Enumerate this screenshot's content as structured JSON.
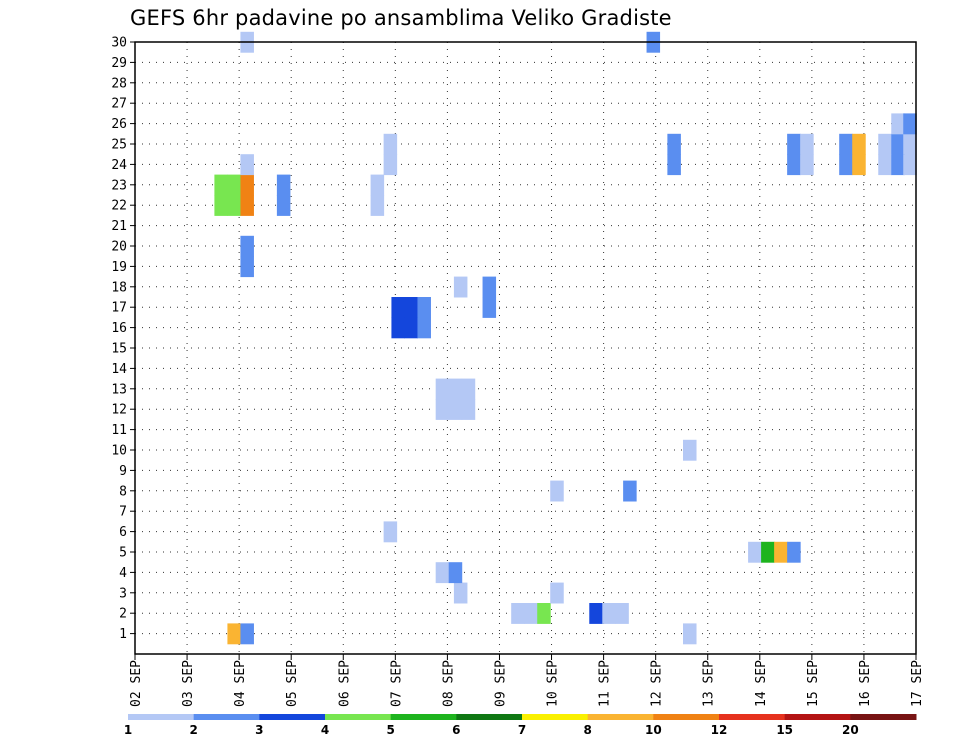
{
  "title": "GEFS 6hr padavine po ansamblima Veliko Gradiste",
  "chart_data": {
    "type": "heatmap",
    "title": "GEFS 6hr padavine po ansamblima Veliko Gradiste",
    "xlabel": "",
    "ylabel": "",
    "x_tick_labels": [
      "02 SEP",
      "03 SEP",
      "04 SEP",
      "05 SEP",
      "06 SEP",
      "07 SEP",
      "08 SEP",
      "09 SEP",
      "10 SEP",
      "11 SEP",
      "12 SEP",
      "13 SEP",
      "14 SEP",
      "15 SEP",
      "16 SEP",
      "17 SEP"
    ],
    "xlim_days": [
      2.0,
      17.0
    ],
    "y_ticks": [
      1,
      2,
      3,
      4,
      5,
      6,
      7,
      8,
      9,
      10,
      11,
      12,
      13,
      14,
      15,
      16,
      17,
      18,
      19,
      20,
      21,
      22,
      23,
      24,
      25,
      26,
      27,
      28,
      29,
      30
    ],
    "ylim": [
      0,
      30
    ],
    "grid": true,
    "legend_placement": "bottom",
    "color_scale": {
      "levels": [
        "1",
        "2",
        "3",
        "4",
        "5",
        "6",
        "7",
        "8",
        "10",
        "12",
        "15",
        "20"
      ],
      "colors": [
        "#b4c8f5",
        "#5a8ef0",
        "#1446dc",
        "#78e650",
        "#1eb41e",
        "#0f7814",
        "#faf000",
        "#fab432",
        "#f08214",
        "#e6321e",
        "#b41414",
        "#781414"
      ]
    },
    "cells": [
      {
        "x": 3.9,
        "y": 1,
        "c": 7
      },
      {
        "x": 4.15,
        "y": 1,
        "c": 1
      },
      {
        "x": 12.65,
        "y": 1,
        "c": 0
      },
      {
        "x": 9.35,
        "y": 2,
        "c": 0
      },
      {
        "x": 9.6,
        "y": 2,
        "c": 0
      },
      {
        "x": 9.85,
        "y": 2,
        "c": 3
      },
      {
        "x": 10.85,
        "y": 2,
        "c": 2
      },
      {
        "x": 11.1,
        "y": 2,
        "c": 0
      },
      {
        "x": 11.35,
        "y": 2,
        "c": 0
      },
      {
        "x": 8.25,
        "y": 3,
        "c": 0
      },
      {
        "x": 10.1,
        "y": 3,
        "c": 0
      },
      {
        "x": 7.9,
        "y": 4,
        "c": 0
      },
      {
        "x": 8.15,
        "y": 4,
        "c": 1
      },
      {
        "x": 13.9,
        "y": 5,
        "c": 0
      },
      {
        "x": 14.15,
        "y": 5,
        "c": 4
      },
      {
        "x": 14.4,
        "y": 5,
        "c": 7
      },
      {
        "x": 14.65,
        "y": 5,
        "c": 1
      },
      {
        "x": 6.9,
        "y": 6,
        "c": 0
      },
      {
        "x": 10.1,
        "y": 8,
        "c": 0
      },
      {
        "x": 11.5,
        "y": 8,
        "c": 1
      },
      {
        "x": 12.65,
        "y": 10,
        "c": 0
      },
      {
        "x": 7.9,
        "y": 12,
        "c": 0
      },
      {
        "x": 8.15,
        "y": 12,
        "c": 0
      },
      {
        "x": 8.4,
        "y": 12,
        "c": 0
      },
      {
        "x": 7.9,
        "y": 13,
        "c": 0
      },
      {
        "x": 8.15,
        "y": 13,
        "c": 0
      },
      {
        "x": 8.4,
        "y": 13,
        "c": 0
      },
      {
        "x": 7.05,
        "y": 16,
        "c": 2
      },
      {
        "x": 7.3,
        "y": 16,
        "c": 2
      },
      {
        "x": 7.55,
        "y": 16,
        "c": 1
      },
      {
        "x": 7.05,
        "y": 17,
        "c": 2
      },
      {
        "x": 7.3,
        "y": 17,
        "c": 2
      },
      {
        "x": 7.55,
        "y": 17,
        "c": 1
      },
      {
        "x": 8.25,
        "y": 18,
        "c": 0
      },
      {
        "x": 8.8,
        "y": 18,
        "c": 1
      },
      {
        "x": 8.8,
        "y": 17,
        "c": 1
      },
      {
        "x": 4.15,
        "y": 20,
        "c": 1
      },
      {
        "x": 4.15,
        "y": 19,
        "c": 1
      },
      {
        "x": 3.65,
        "y": 23,
        "c": 3
      },
      {
        "x": 3.9,
        "y": 23,
        "c": 3
      },
      {
        "x": 4.15,
        "y": 23,
        "c": 8
      },
      {
        "x": 3.65,
        "y": 22,
        "c": 3
      },
      {
        "x": 3.9,
        "y": 22,
        "c": 3
      },
      {
        "x": 4.15,
        "y": 22,
        "c": 8
      },
      {
        "x": 4.85,
        "y": 23,
        "c": 1
      },
      {
        "x": 4.85,
        "y": 22,
        "c": 1
      },
      {
        "x": 6.65,
        "y": 23,
        "c": 0
      },
      {
        "x": 6.65,
        "y": 22,
        "c": 0
      },
      {
        "x": 4.15,
        "y": 24,
        "c": 0
      },
      {
        "x": 6.9,
        "y": 25,
        "c": 0
      },
      {
        "x": 6.9,
        "y": 24,
        "c": 0
      },
      {
        "x": 12.35,
        "y": 25,
        "c": 1
      },
      {
        "x": 12.35,
        "y": 24,
        "c": 1
      },
      {
        "x": 14.65,
        "y": 25,
        "c": 1
      },
      {
        "x": 14.9,
        "y": 25,
        "c": 0
      },
      {
        "x": 14.65,
        "y": 24,
        "c": 1
      },
      {
        "x": 14.9,
        "y": 24,
        "c": 0
      },
      {
        "x": 15.65,
        "y": 25,
        "c": 1
      },
      {
        "x": 15.9,
        "y": 25,
        "c": 7
      },
      {
        "x": 15.65,
        "y": 24,
        "c": 1
      },
      {
        "x": 15.9,
        "y": 24,
        "c": 7
      },
      {
        "x": 16.4,
        "y": 25,
        "c": 0
      },
      {
        "x": 16.65,
        "y": 25,
        "c": 1
      },
      {
        "x": 16.88,
        "y": 25,
        "c": 0
      },
      {
        "x": 16.4,
        "y": 24,
        "c": 0
      },
      {
        "x": 16.65,
        "y": 24,
        "c": 1
      },
      {
        "x": 16.88,
        "y": 24,
        "c": 0
      },
      {
        "x": 16.65,
        "y": 26,
        "c": 0
      },
      {
        "x": 16.88,
        "y": 26,
        "c": 1
      },
      {
        "x": 4.15,
        "y": 30,
        "c": 0
      },
      {
        "x": 11.95,
        "y": 30,
        "c": 1
      }
    ]
  }
}
